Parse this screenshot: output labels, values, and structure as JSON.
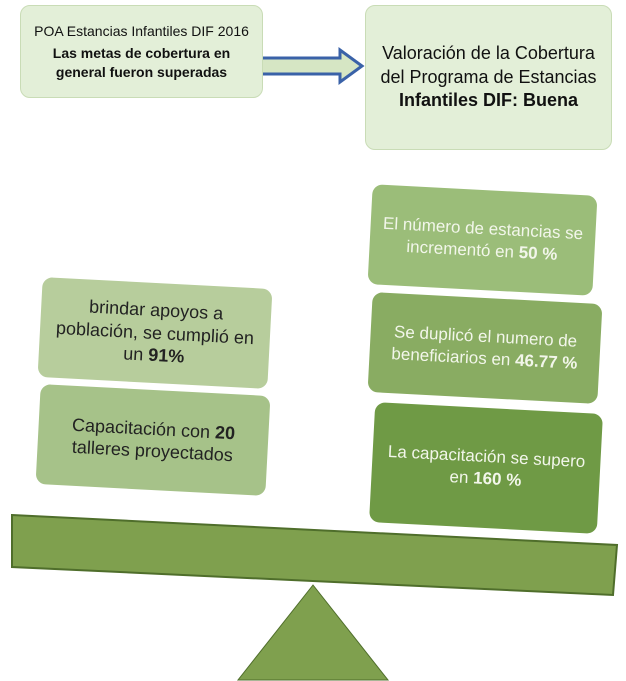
{
  "header": {
    "left": {
      "text": "POA Estancias Infantiles DIF 2016",
      "bold": "Las metas de cobertura en general fueron superadas"
    },
    "right": {
      "text": "Valoración de la Cobertura del Programa de Estancias ",
      "bold": "Infantiles DIF: Buena"
    }
  },
  "left": [
    {
      "text": "brindar apoyos a población, se cumplió en un ",
      "bold": "91%"
    },
    {
      "text": "Capacitación con ",
      "bold": "20",
      "after": " talleres proyectados"
    }
  ],
  "right": [
    {
      "text": "El número de estancias se incrementó en ",
      "bold": "50 %"
    },
    {
      "text": "Se duplicó el numero de beneficiarios en ",
      "bold": "46.77 %"
    },
    {
      "text": "La capacitación se supero en ",
      "bold": "160 %"
    }
  ]
}
